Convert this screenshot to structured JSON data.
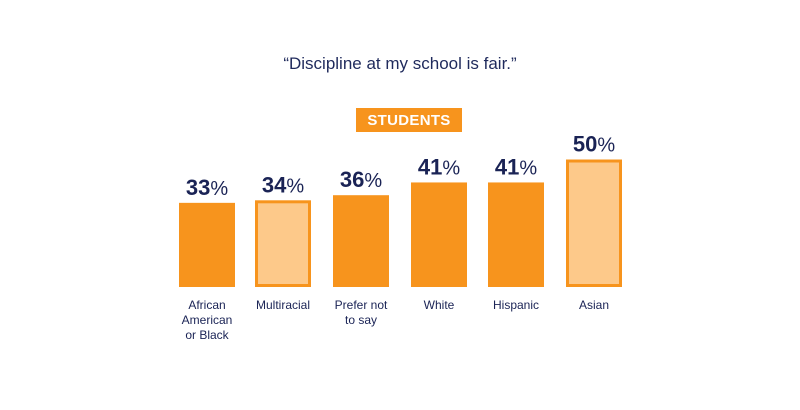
{
  "chart_data": {
    "type": "bar",
    "title": "“Discipline at my school is fair.”",
    "group_label": "STUDENTS",
    "categories": [
      [
        "African",
        "American",
        "or Black"
      ],
      [
        "Multiracial"
      ],
      [
        "Prefer not",
        "to say"
      ],
      [
        "White"
      ],
      [
        "Hispanic"
      ],
      [
        "Asian"
      ]
    ],
    "values": [
      33,
      34,
      36,
      41,
      41,
      50
    ],
    "value_suffix": "%",
    "highlighted": [
      false,
      true,
      false,
      false,
      false,
      true
    ],
    "ylim": [
      0,
      100
    ],
    "colors": {
      "bar": "#f7941d",
      "bar_highlight": "#fdc98a",
      "bar_highlight_border": "#f7941d",
      "badge": "#f7941d",
      "text": "#1a2355"
    }
  }
}
